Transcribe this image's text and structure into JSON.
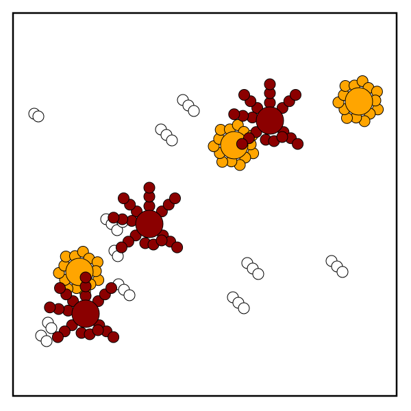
{
  "colors": {
    "frame": "#000000",
    "background": "#ffffff",
    "dark": "#8b0000",
    "orange": "#ffa500",
    "empty": "#ffffff"
  },
  "dark_clusters": [
    {
      "id": "dark-1",
      "arms": 6
    },
    {
      "id": "dark-2",
      "arms": 6
    },
    {
      "id": "dark-3",
      "arms": 6
    }
  ],
  "orange_clusters": [
    {
      "id": "orange-1",
      "petals": 14
    },
    {
      "id": "orange-2",
      "petals": 14
    },
    {
      "id": "orange-3",
      "petals": 14
    }
  ],
  "white_groups": [
    {
      "id": "white-1",
      "count": 2
    },
    {
      "id": "white-2",
      "count": 3
    },
    {
      "id": "white-3",
      "count": 3
    },
    {
      "id": "white-4",
      "count": 4
    },
    {
      "id": "white-5",
      "count": 2
    },
    {
      "id": "white-6",
      "count": 3
    },
    {
      "id": "white-7",
      "count": 3
    },
    {
      "id": "white-8",
      "count": 3
    },
    {
      "id": "white-9",
      "count": 3
    },
    {
      "id": "white-10",
      "count": 4
    }
  ]
}
